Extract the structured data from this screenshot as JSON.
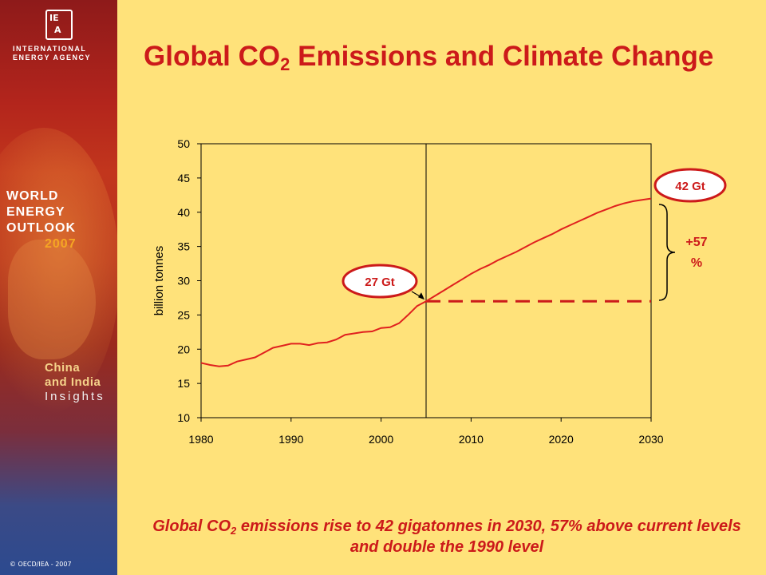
{
  "title": {
    "pre": "Global CO",
    "sub": "2",
    "post": " Emissions and Climate Change"
  },
  "caption": {
    "pre": "Global CO",
    "sub": "2",
    "post": " emissions rise to 42 gigatonnes in 2030, 57% above current levels and double the 1990 level"
  },
  "sidebar": {
    "org_line1": "INTERNATIONAL",
    "org_line2": "ENERGY AGENCY",
    "weo_line1": "WORLD",
    "weo_line2": "ENERGY",
    "weo_line3": "OUTLOOK",
    "weo_year": "2007",
    "ci_line1": "China",
    "ci_line2": "and India",
    "ci_line3": "Insights",
    "copyright": "© OECD/IEA - 2007"
  },
  "colors": {
    "background": "#FFE27A",
    "accent": "#cc1a1a",
    "line": "#e0201e"
  },
  "chart_data": {
    "type": "line",
    "ylabel": "billion tonnes",
    "xlim": [
      1980,
      2030
    ],
    "ylim": [
      10,
      50
    ],
    "x_ticks": [
      "1980",
      "1990",
      "2000",
      "2010",
      "2020",
      "2030"
    ],
    "y_ticks": [
      "10",
      "15",
      "20",
      "25",
      "30",
      "35",
      "40",
      "45",
      "50"
    ],
    "series": [
      {
        "x": [
          1980,
          1981,
          1982,
          1983,
          1984,
          1985,
          1986,
          1987,
          1988,
          1989,
          1990,
          1991,
          1992,
          1993,
          1994,
          1995,
          1996,
          1997,
          1998,
          1999,
          2000,
          2001,
          2002,
          2003,
          2004,
          2005,
          2006,
          2007,
          2008,
          2009,
          2010,
          2011,
          2012,
          2013,
          2014,
          2015,
          2016,
          2017,
          2018,
          2019,
          2020,
          2021,
          2022,
          2023,
          2024,
          2025,
          2026,
          2027,
          2028,
          2029,
          2030
        ],
        "y": [
          18.0,
          17.7,
          17.5,
          17.6,
          18.2,
          18.5,
          18.8,
          19.5,
          20.2,
          20.5,
          20.8,
          20.8,
          20.6,
          20.9,
          21.0,
          21.4,
          22.1,
          22.3,
          22.5,
          22.6,
          23.1,
          23.2,
          23.8,
          25.0,
          26.3,
          27.0,
          27.8,
          28.6,
          29.4,
          30.2,
          31.0,
          31.7,
          32.3,
          33.0,
          33.6,
          34.2,
          34.9,
          35.6,
          36.2,
          36.8,
          37.5,
          38.1,
          38.7,
          39.3,
          39.9,
          40.4,
          40.9,
          41.3,
          41.6,
          41.8,
          42.0
        ]
      }
    ],
    "divider_x": 2005,
    "baseline": {
      "from_x": 2005,
      "to_x": 2030,
      "y": 27
    },
    "annotations": {
      "start_label": "27 Gt",
      "end_label": "42 Gt",
      "increase_line1": "+57",
      "increase_line2": "%"
    }
  }
}
